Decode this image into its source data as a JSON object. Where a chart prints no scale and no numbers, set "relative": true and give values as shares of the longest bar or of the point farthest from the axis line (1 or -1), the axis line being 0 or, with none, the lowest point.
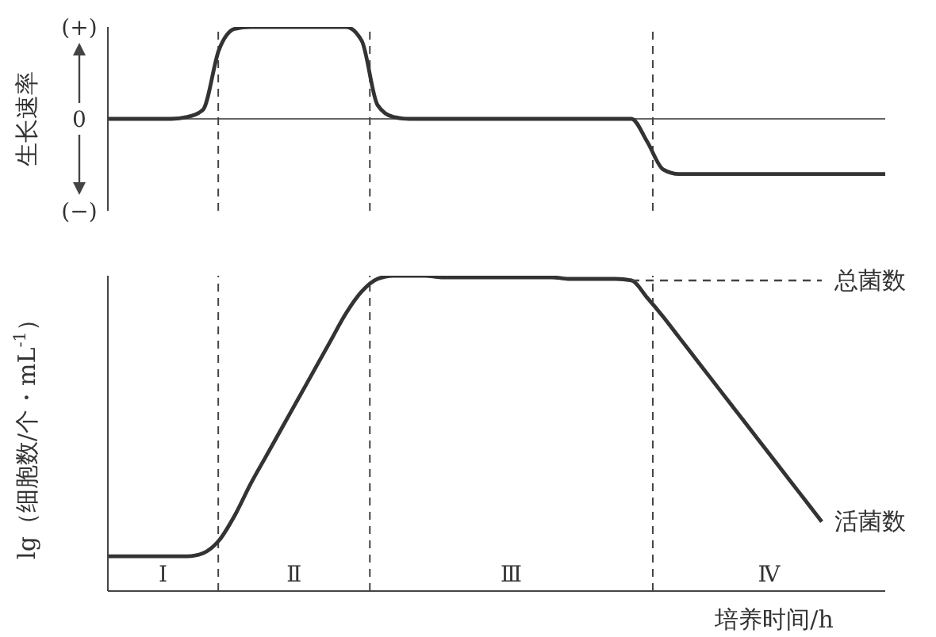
{
  "chart_data": [
    {
      "type": "line",
      "ylabel": "生长速率",
      "categories": [
        null,
        null,
        null,
        null,
        null,
        null,
        null,
        null,
        null,
        null,
        null,
        null,
        null,
        null,
        null,
        null,
        null,
        null,
        null,
        null,
        null,
        null,
        null,
        null,
        null,
        null,
        null,
        null,
        null,
        null,
        null,
        null,
        null,
        null,
        null,
        null,
        null,
        null,
        null,
        null,
        null,
        null,
        null,
        null,
        null,
        null,
        null,
        null,
        null,
        null
      ],
      "series": [
        {
          "color": "#333333",
          "values": [
            0,
            0,
            0,
            0,
            0,
            0.02,
            0.1,
            0.75,
            0.98,
            1,
            1,
            1,
            1,
            1,
            1,
            1,
            0.85,
            0.15,
            0.02,
            0,
            0,
            0,
            0,
            0,
            0,
            0,
            0,
            0,
            0,
            0,
            0,
            0,
            0,
            0,
            -0.25,
            -0.55,
            -0.6,
            -0.6,
            -0.6,
            -0.6,
            -0.6,
            -0.6,
            -0.6,
            -0.6,
            -0.6,
            -0.6,
            -0.6,
            -0.6,
            -0.6,
            -0.6
          ]
        }
      ],
      "relative": true,
      "annotations": [
        "(+)",
        "0",
        "(−)"
      ],
      "ref_lines": [
        {
          "axis": "y",
          "value": 0,
          "color": "#666666",
          "line_style": "solid"
        }
      ]
    },
    {
      "type": "line",
      "relative": true,
      "xlabel": "培养时间/h",
      "ylabel": "lg（细胞数/个・mL$^{-1}$）",
      "categories": [
        null,
        null,
        null,
        null,
        null,
        null,
        null,
        null,
        null,
        null,
        null,
        null,
        null,
        null,
        null,
        null,
        null,
        null,
        null,
        null,
        null,
        null,
        null,
        null,
        null,
        null,
        null,
        null,
        null,
        null,
        null,
        null,
        null,
        null,
        null,
        null,
        null,
        null,
        null,
        null,
        null,
        null,
        null,
        null,
        null,
        null,
        null,
        null,
        null,
        null
      ],
      "series": [
        {
          "name": "活菌数",
          "color": "#333333",
          "line_style": "solid",
          "values": [
            0.11,
            0.11,
            0.11,
            0.11,
            0.11,
            0.11,
            0.12,
            0.16,
            0.24,
            0.34,
            0.43,
            0.52,
            0.61,
            0.7,
            0.79,
            0.88,
            0.95,
            0.99,
            1,
            1,
            1,
            0.995,
            0.995,
            0.995,
            0.995,
            0.995,
            0.995,
            0.995,
            0.995,
            0.99,
            0.99,
            0.99,
            0.99,
            0.985,
            0.93,
            0.87,
            0.805,
            0.74,
            0.675,
            0.61,
            0.545,
            0.48,
            0.415,
            0.35,
            0.285,
            0.22,
            null,
            null,
            null,
            null
          ]
        },
        {
          "name": "总菌数",
          "color": "#444444",
          "line_style": "dashed",
          "values": [
            null,
            null,
            null,
            null,
            null,
            null,
            null,
            null,
            null,
            null,
            null,
            null,
            null,
            null,
            null,
            null,
            null,
            null,
            null,
            null,
            null,
            null,
            null,
            null,
            null,
            null,
            null,
            null,
            null,
            null,
            null,
            null,
            null,
            0.985,
            0.985,
            0.985,
            0.985,
            0.985,
            0.985,
            0.985,
            0.985,
            0.985,
            0.985,
            0.985,
            0.985,
            0.985,
            null,
            null,
            null,
            null
          ]
        }
      ],
      "annotations": [
        "Ⅰ",
        "Ⅱ",
        "Ⅲ",
        "Ⅳ"
      ]
    }
  ]
}
